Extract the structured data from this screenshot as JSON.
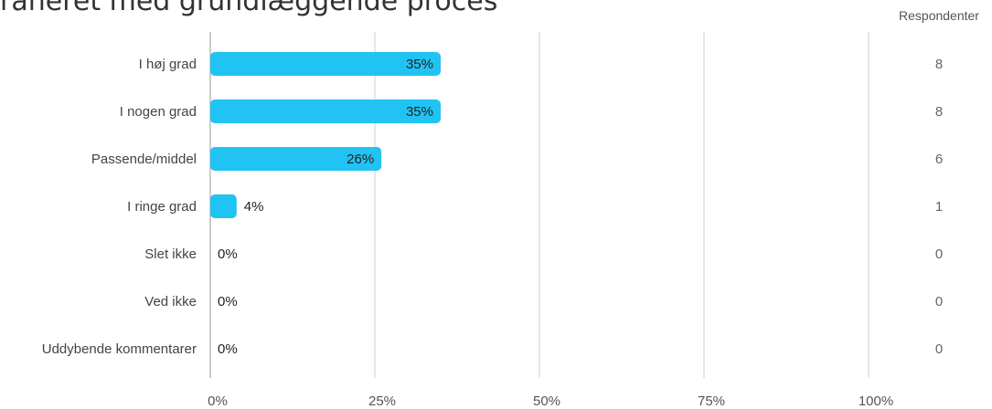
{
  "header": {
    "title": "raneret med grundlæggende proces"
  },
  "chart_data": {
    "type": "bar",
    "orientation": "horizontal",
    "title": "raneret med grundlæggende proces",
    "categories": [
      "I høj grad",
      "I nogen grad",
      "Passende/middel",
      "I ringe grad",
      "Slet ikke",
      "Ved ikke",
      "Uddybende kommentarer"
    ],
    "values": [
      35,
      35,
      26,
      4,
      0,
      0,
      0
    ],
    "value_labels": [
      "35%",
      "35%",
      "26%",
      "4%",
      "0%",
      "0%",
      "0%"
    ],
    "respondents_header": "Respondenter",
    "respondents": [
      "8",
      "8",
      "6",
      "1",
      "0",
      "0",
      "0"
    ],
    "x_ticks": [
      0,
      25,
      50,
      75,
      100
    ],
    "x_tick_labels": [
      "0%",
      "25%",
      "50%",
      "75%",
      "100%"
    ],
    "xlim": [
      0,
      100
    ],
    "grid": true,
    "legend": "none",
    "bar_color": "#21c3f3",
    "grid_color": "#cccccc"
  }
}
